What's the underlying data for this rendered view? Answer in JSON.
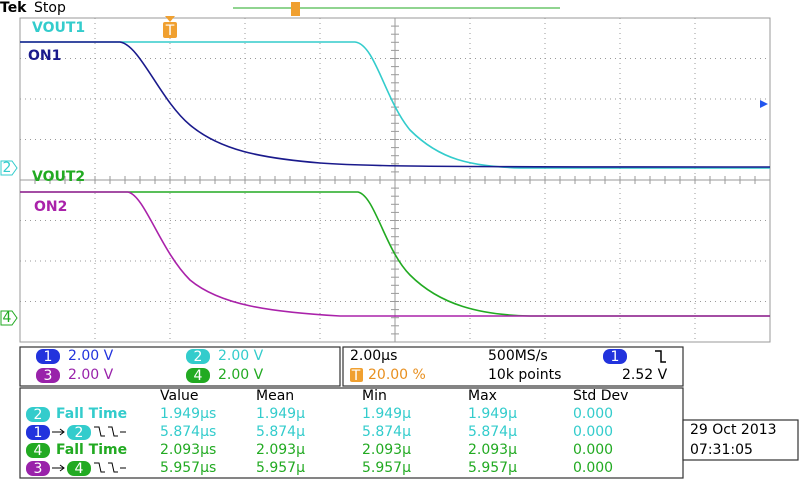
{
  "header": {
    "brand": "Tek",
    "status": "Stop"
  },
  "traces": [
    {
      "label": "VOUT1"
    },
    {
      "label": "ON1"
    },
    {
      "label": "VOUT2"
    },
    {
      "label": "ON2"
    }
  ],
  "markers": {
    "ch2": "2",
    "ch4": "4",
    "trigger": "T"
  },
  "channels": [
    {
      "num": "1",
      "scale": "2.00 V"
    },
    {
      "num": "2",
      "scale": "2.00 V"
    },
    {
      "num": "3",
      "scale": "2.00 V"
    },
    {
      "num": "4",
      "scale": "2.00 V"
    }
  ],
  "acquisition": {
    "timebase": "2.00µs",
    "sample_rate": "500MS/s",
    "trigger_source": "1",
    "trigger_level": "2.52 V",
    "trigger_icon": "T",
    "trigger_position": "20.00 %",
    "record_length": "10k points"
  },
  "measurements": {
    "columns": [
      "Value",
      "Mean",
      "Min",
      "Max",
      "Std Dev"
    ],
    "rows": [
      {
        "source": "2",
        "label": "Fall Time",
        "values": [
          "1.949µs",
          "1.949µ",
          "1.949µ",
          "1.949µ",
          "0.000"
        ]
      },
      {
        "source": "1",
        "target": "2",
        "values": [
          "5.874µs",
          "5.874µ",
          "5.874µ",
          "5.874µ",
          "0.000"
        ]
      },
      {
        "source": "4",
        "label": "Fall Time",
        "values": [
          "2.093µs",
          "2.093µ",
          "2.093µ",
          "2.093µ",
          "0.000"
        ]
      },
      {
        "source": "3",
        "target": "4",
        "values": [
          "5.957µs",
          "5.957µ",
          "5.957µ",
          "5.957µ",
          "0.000"
        ]
      }
    ]
  },
  "datetime": {
    "date": "29 Oct 2013",
    "time": "07:31:05"
  }
}
